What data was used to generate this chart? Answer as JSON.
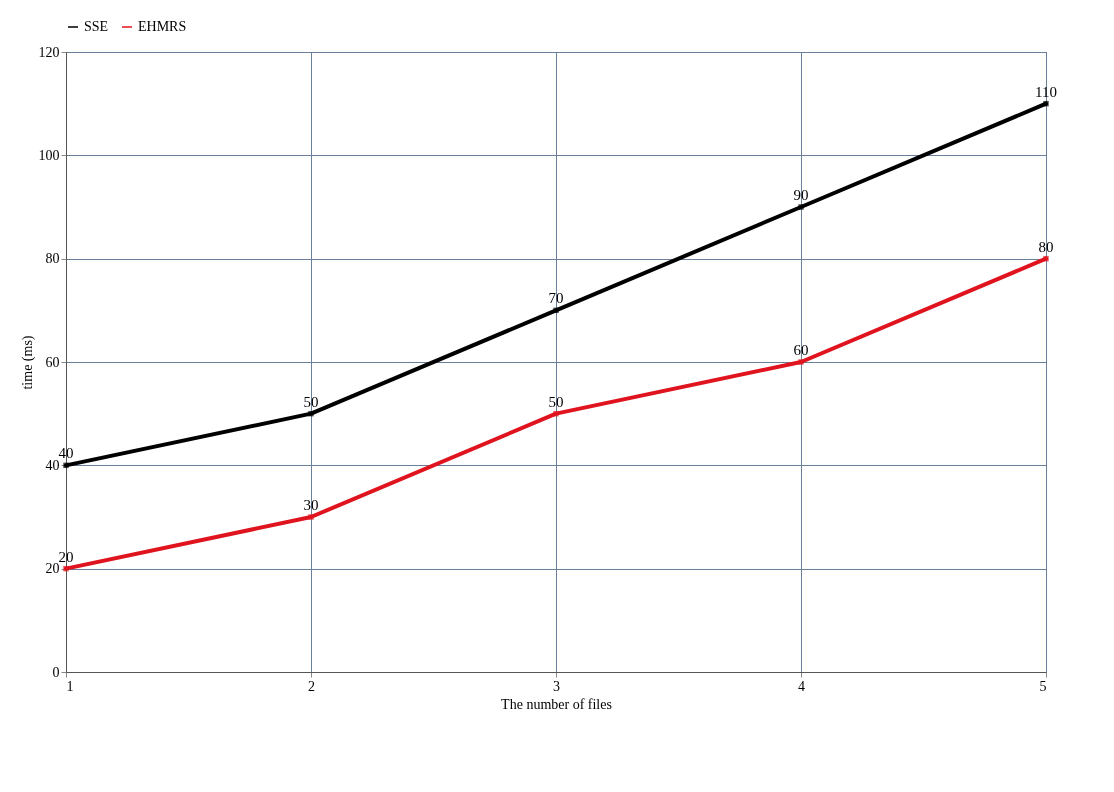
{
  "chart_data": {
    "type": "line",
    "xlabel": "The number of files",
    "ylabel": "time (ms)",
    "x": [
      1,
      2,
      3,
      4,
      5
    ],
    "xlim": [
      1,
      5
    ],
    "xticks": [
      1,
      2,
      3,
      4,
      5
    ],
    "ylim": [
      0,
      120
    ],
    "yticks": [
      0,
      20,
      40,
      60,
      80,
      100,
      120
    ],
    "grid": true,
    "legend": "top left",
    "marker": "square",
    "line_style": "solid",
    "data_labels": true,
    "series": [
      {
        "name": "SSE",
        "color": "#000000",
        "values": [
          40,
          50,
          70,
          90,
          110
        ]
      },
      {
        "name": "EHMRS",
        "color": "#e0141e",
        "values": [
          20,
          30,
          50,
          60,
          80
        ]
      }
    ]
  }
}
